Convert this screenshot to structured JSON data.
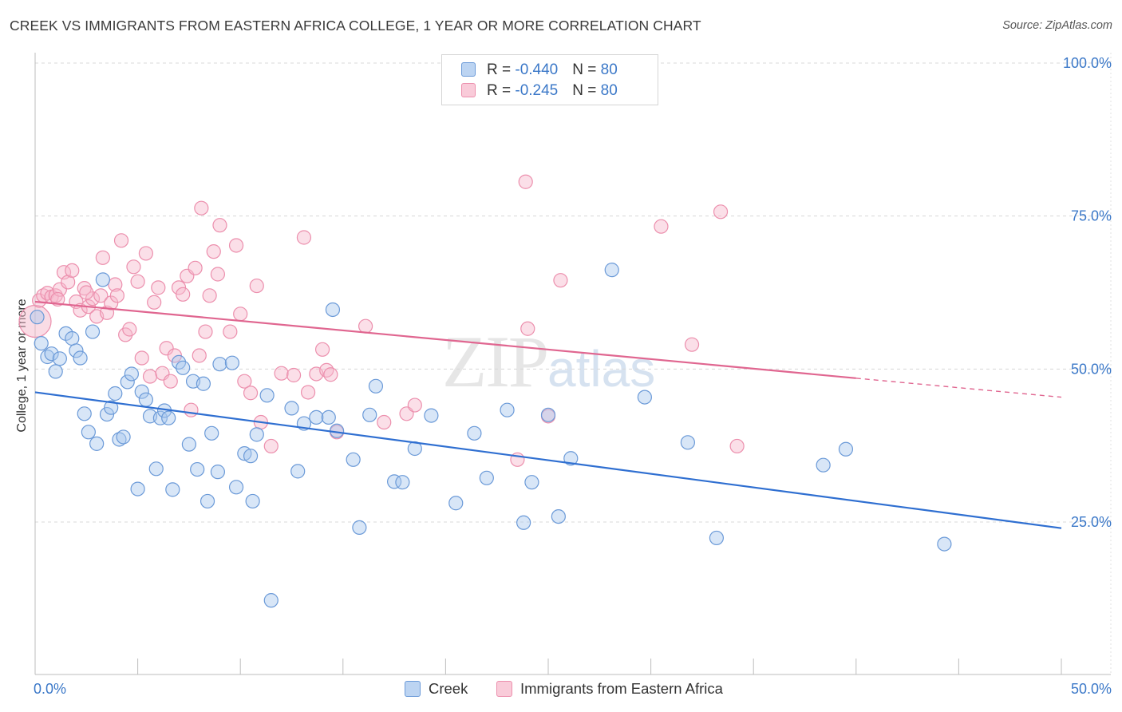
{
  "title": "CREEK VS IMMIGRANTS FROM EASTERN AFRICA COLLEGE, 1 YEAR OR MORE CORRELATION CHART",
  "source": "Source: ZipAtlas.com",
  "watermark": {
    "big": "ZIP",
    "small": "atlas"
  },
  "legend": {
    "rows": [
      {
        "r_label": "R = ",
        "r_value": "-0.440",
        "n_label": "N = ",
        "n_value": "80"
      },
      {
        "r_label": "R = ",
        "r_value": "-0.245",
        "n_label": "N = ",
        "n_value": "80"
      }
    ]
  },
  "colors": {
    "creek_fill": "#a9c8ee",
    "creek_stroke": "#6b9ad8",
    "creek_line": "#2f6fd1",
    "imm_fill": "#f6b9cc",
    "imm_stroke": "#ec8fad",
    "imm_line": "#e06690",
    "tick_text": "#3b78c8",
    "grid": "#d8d8d8"
  },
  "chart_data": {
    "type": "scatter",
    "title": "CREEK VS IMMIGRANTS FROM EASTERN AFRICA COLLEGE, 1 YEAR OR MORE CORRELATION CHART",
    "xlabel": "",
    "ylabel": "College, 1 year or more",
    "xlim": [
      0,
      50
    ],
    "ylim": [
      0,
      105
    ],
    "x_tick_labels": [
      "0.0%",
      "50.0%"
    ],
    "y_ticks": [
      25,
      50,
      75,
      100
    ],
    "y_tick_labels": [
      "25.0%",
      "50.0%",
      "75.0%",
      "100.0%"
    ],
    "grid": true,
    "series": [
      {
        "name": "Creek",
        "R": -0.44,
        "N": 80,
        "trend": {
          "x0": 0,
          "y0": 46.2,
          "x1": 50,
          "y1": 24.0
        },
        "points": [
          [
            0.1,
            58.5
          ],
          [
            0.3,
            54.2
          ],
          [
            0.6,
            52.0
          ],
          [
            0.8,
            52.5
          ],
          [
            1.0,
            49.6
          ],
          [
            1.2,
            51.7
          ],
          [
            1.5,
            55.8
          ],
          [
            1.8,
            55.0
          ],
          [
            2.0,
            53.0
          ],
          [
            2.2,
            51.8
          ],
          [
            2.4,
            42.7
          ],
          [
            2.6,
            39.7
          ],
          [
            2.8,
            56.1
          ],
          [
            3.0,
            37.8
          ],
          [
            3.3,
            64.6
          ],
          [
            3.5,
            42.6
          ],
          [
            3.7,
            43.7
          ],
          [
            3.9,
            46.0
          ],
          [
            4.1,
            38.5
          ],
          [
            4.3,
            38.9
          ],
          [
            4.5,
            47.9
          ],
          [
            4.7,
            49.2
          ],
          [
            5.0,
            30.4
          ],
          [
            5.2,
            46.3
          ],
          [
            5.4,
            45.0
          ],
          [
            5.6,
            42.3
          ],
          [
            5.9,
            33.7
          ],
          [
            6.1,
            42.0
          ],
          [
            6.3,
            43.2
          ],
          [
            6.5,
            42.0
          ],
          [
            6.7,
            30.3
          ],
          [
            7.0,
            51.1
          ],
          [
            7.2,
            50.2
          ],
          [
            7.5,
            37.7
          ],
          [
            7.7,
            48.0
          ],
          [
            7.9,
            33.6
          ],
          [
            8.2,
            47.6
          ],
          [
            8.4,
            28.4
          ],
          [
            8.6,
            39.5
          ],
          [
            8.9,
            33.2
          ],
          [
            9.0,
            50.8
          ],
          [
            9.6,
            51.0
          ],
          [
            9.8,
            30.7
          ],
          [
            10.2,
            36.2
          ],
          [
            10.5,
            35.8
          ],
          [
            10.6,
            28.4
          ],
          [
            10.8,
            39.3
          ],
          [
            11.3,
            45.7
          ],
          [
            11.5,
            12.2
          ],
          [
            12.5,
            43.6
          ],
          [
            12.8,
            33.3
          ],
          [
            13.1,
            41.1
          ],
          [
            13.7,
            42.1
          ],
          [
            14.3,
            42.1
          ],
          [
            14.5,
            59.7
          ],
          [
            14.7,
            39.9
          ],
          [
            15.5,
            35.2
          ],
          [
            15.8,
            24.1
          ],
          [
            16.3,
            42.5
          ],
          [
            16.6,
            47.2
          ],
          [
            17.5,
            31.6
          ],
          [
            17.9,
            31.5
          ],
          [
            18.5,
            37.0
          ],
          [
            19.3,
            42.4
          ],
          [
            20.5,
            28.1
          ],
          [
            21.4,
            39.5
          ],
          [
            22.0,
            32.2
          ],
          [
            23.0,
            43.3
          ],
          [
            23.8,
            24.9
          ],
          [
            24.2,
            31.5
          ],
          [
            25.0,
            42.5
          ],
          [
            25.5,
            25.9
          ],
          [
            26.1,
            35.4
          ],
          [
            28.1,
            66.2
          ],
          [
            29.7,
            45.4
          ],
          [
            31.8,
            38.0
          ],
          [
            33.2,
            22.4
          ],
          [
            38.4,
            34.3
          ],
          [
            39.5,
            36.9
          ],
          [
            44.3,
            21.4
          ]
        ]
      },
      {
        "name": "Immigrants from Eastern Africa",
        "R": -0.245,
        "N": 80,
        "trend": {
          "x0": 0,
          "y0": 61.0,
          "x1": 40,
          "y1": 48.5,
          "dash_to_x": 50,
          "dash_to_y": 45.4
        },
        "points": [
          [
            0.0,
            57.8
          ],
          [
            0.2,
            61.2
          ],
          [
            0.4,
            62.0
          ],
          [
            0.6,
            62.4
          ],
          [
            0.8,
            61.8
          ],
          [
            1.0,
            62.0
          ],
          [
            1.2,
            63.0
          ],
          [
            1.4,
            65.8
          ],
          [
            1.6,
            64.2
          ],
          [
            1.8,
            66.1
          ],
          [
            2.0,
            61.0
          ],
          [
            2.2,
            59.6
          ],
          [
            2.4,
            63.2
          ],
          [
            2.6,
            60.2
          ],
          [
            2.8,
            61.5
          ],
          [
            3.0,
            58.6
          ],
          [
            3.2,
            62.0
          ],
          [
            3.3,
            68.2
          ],
          [
            3.5,
            59.2
          ],
          [
            3.7,
            60.8
          ],
          [
            3.9,
            63.8
          ],
          [
            4.0,
            62.0
          ],
          [
            4.2,
            71.0
          ],
          [
            4.4,
            55.6
          ],
          [
            4.6,
            56.5
          ],
          [
            4.8,
            66.7
          ],
          [
            5.0,
            64.3
          ],
          [
            5.2,
            51.8
          ],
          [
            5.4,
            68.9
          ],
          [
            5.6,
            48.8
          ],
          [
            5.8,
            60.9
          ],
          [
            6.0,
            63.3
          ],
          [
            6.2,
            49.3
          ],
          [
            6.4,
            53.4
          ],
          [
            6.6,
            48.0
          ],
          [
            6.8,
            52.2
          ],
          [
            7.0,
            63.3
          ],
          [
            7.2,
            62.2
          ],
          [
            7.4,
            65.2
          ],
          [
            7.6,
            43.3
          ],
          [
            7.8,
            66.5
          ],
          [
            8.0,
            52.2
          ],
          [
            8.1,
            76.3
          ],
          [
            8.3,
            56.1
          ],
          [
            8.5,
            62.0
          ],
          [
            8.7,
            69.2
          ],
          [
            8.9,
            65.5
          ],
          [
            9.0,
            73.5
          ],
          [
            9.5,
            56.1
          ],
          [
            9.8,
            70.2
          ],
          [
            10.0,
            59.0
          ],
          [
            10.2,
            48.0
          ],
          [
            10.5,
            46.1
          ],
          [
            10.8,
            63.6
          ],
          [
            11.0,
            41.3
          ],
          [
            11.5,
            37.4
          ],
          [
            12.0,
            49.3
          ],
          [
            12.6,
            49.0
          ],
          [
            13.1,
            71.5
          ],
          [
            13.3,
            46.2
          ],
          [
            13.7,
            49.2
          ],
          [
            14.0,
            53.2
          ],
          [
            14.2,
            49.8
          ],
          [
            14.4,
            49.1
          ],
          [
            14.7,
            39.7
          ],
          [
            16.1,
            57.0
          ],
          [
            17.0,
            41.3
          ],
          [
            18.1,
            42.7
          ],
          [
            18.5,
            44.1
          ],
          [
            23.5,
            35.2
          ],
          [
            23.9,
            80.6
          ],
          [
            24.0,
            56.6
          ],
          [
            25.0,
            42.3
          ],
          [
            25.6,
            64.5
          ],
          [
            30.5,
            73.3
          ],
          [
            32.0,
            54.0
          ],
          [
            33.4,
            75.7
          ],
          [
            34.2,
            37.4
          ],
          [
            2.5,
            62.5
          ],
          [
            1.1,
            61.4
          ]
        ]
      }
    ]
  },
  "bottom_legend": [
    "Creek",
    "Immigrants from Eastern Africa"
  ]
}
